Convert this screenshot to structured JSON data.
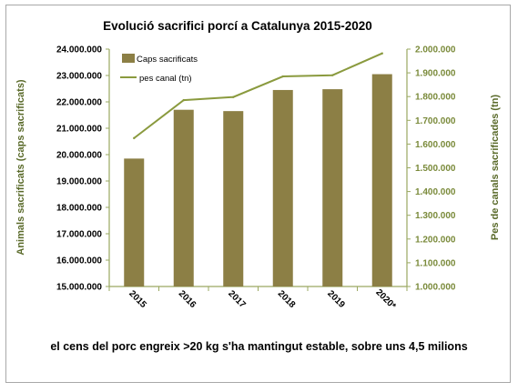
{
  "chart_data": {
    "type": "bar",
    "title": "Evolució sacrifici porcí a Catalunya 2015-2020",
    "categories": [
      "2015",
      "2016",
      "2017",
      "2018",
      "2019",
      "2020*"
    ],
    "series": [
      {
        "name": "Caps sacrificats",
        "type": "bar",
        "axis": "left",
        "values": [
          19850000,
          21700000,
          21650000,
          22450000,
          22480000,
          23050000
        ]
      },
      {
        "name": "pes canal (tn)",
        "type": "line",
        "axis": "right",
        "values": [
          1625000,
          1785000,
          1798000,
          1885000,
          1890000,
          1982000
        ]
      }
    ],
    "ylabel_left": "Animals sacrificats (caps sacrificats)",
    "ylabel_right": "Pes de canals sacrificades (tn)",
    "ylim_left": [
      15000000,
      24000000
    ],
    "ylim_right": [
      1000000,
      2000000
    ],
    "yticks_left": [
      "15.000.000",
      "16.000.000",
      "17.000.000",
      "18.000.000",
      "19.000.000",
      "20.000.000",
      "21.000.000",
      "22.000.000",
      "23.000.000",
      "24.000.000"
    ],
    "yticks_right": [
      "1.000.000",
      "1.100.000",
      "1.200.000",
      "1.300.000",
      "1.400.000",
      "1.500.000",
      "1.600.000",
      "1.700.000",
      "1.800.000",
      "1.900.000",
      "2.000.000"
    ],
    "grid": false,
    "legend_position": "top-left",
    "colors": {
      "bar": "#8c7f45",
      "line": "#8a9a3e",
      "axis_title": "#5a6a2a",
      "right_axis": "#7a8a3a",
      "left_axis": "#8a9a3e"
    }
  },
  "note": "el cens del porc engreix >20 kg s'ha mantingut estable, sobre uns 4,5 milions"
}
